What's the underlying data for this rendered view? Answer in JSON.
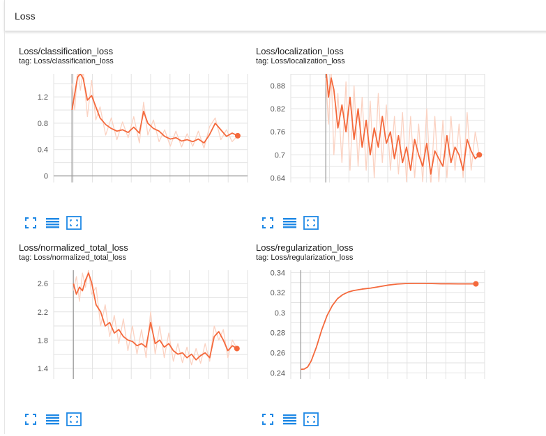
{
  "section": {
    "title": "Loss"
  },
  "colors": {
    "smoothed": "#f4693c",
    "raw": "#fbd2c2",
    "grid": "#e2e2e2",
    "axis": "#9e9e9e",
    "icon": "#1e88e5"
  },
  "icons": [
    "fit-domain-icon",
    "toggle-log-scale-icon",
    "expand-chart-icon"
  ],
  "cards": [
    {
      "title": "Loss/classification_loss",
      "tag_prefix": "tag:",
      "tag": "Loss/classification_loss"
    },
    {
      "title": "Loss/localization_loss",
      "tag_prefix": "tag:",
      "tag": "Loss/localization_loss"
    },
    {
      "title": "Loss/normalized_total_loss",
      "tag_prefix": "tag:",
      "tag": "Loss/normalized_total_loss"
    },
    {
      "title": "Loss/regularization_loss",
      "tag_prefix": "tag:",
      "tag": "Loss/regularization_loss"
    }
  ],
  "chart_data": [
    {
      "type": "line",
      "title": "Loss/classification_loss",
      "xlabel": "",
      "ylabel": "",
      "ylim": [
        -0.1,
        1.55
      ],
      "xlim": [
        -1.3,
        12.5
      ],
      "yticks": [
        0,
        0.4,
        0.8,
        1.2
      ],
      "y_tick_labels": [
        "0",
        "0.4",
        "0.8",
        "1.2"
      ],
      "y_axis_at_x": 0,
      "grid": true,
      "legend": "none",
      "series": [
        {
          "name": "",
          "style": "smoothed",
          "x": [
            0,
            0.2,
            0.4,
            0.6,
            0.8,
            1.1,
            1.4,
            1.7,
            2.0,
            2.4,
            2.8,
            3.2,
            3.6,
            4.0,
            4.4,
            4.8,
            5.1,
            5.4,
            5.8,
            6.2,
            6.6,
            7.0,
            7.4,
            7.8,
            8.2,
            8.6,
            9.0,
            9.4,
            9.8,
            10.2,
            10.6,
            11.0,
            11.4,
            11.8
          ],
          "y": [
            1.0,
            1.25,
            1.5,
            1.55,
            1.48,
            1.15,
            1.22,
            1.05,
            0.88,
            0.78,
            0.72,
            0.68,
            0.7,
            0.66,
            0.74,
            0.65,
            0.98,
            0.8,
            0.72,
            0.68,
            0.6,
            0.56,
            0.58,
            0.53,
            0.55,
            0.52,
            0.56,
            0.5,
            0.63,
            0.8,
            0.7,
            0.6,
            0.65,
            0.61
          ]
        },
        {
          "name": "",
          "style": "raw",
          "x": [
            0,
            0.2,
            0.4,
            0.6,
            0.8,
            1.1,
            1.4,
            1.7,
            2.0,
            2.4,
            2.8,
            3.2,
            3.6,
            4.0,
            4.4,
            4.8,
            5.1,
            5.4,
            5.8,
            6.2,
            6.6,
            7.0,
            7.4,
            7.8,
            8.2,
            8.6,
            9.0,
            9.4,
            9.8,
            10.2,
            10.6,
            11.0,
            11.4,
            11.8
          ],
          "y": [
            1.4,
            1.0,
            1.62,
            1.3,
            1.6,
            0.9,
            1.45,
            0.85,
            1.05,
            0.62,
            0.88,
            0.55,
            0.82,
            0.58,
            0.9,
            0.5,
            1.12,
            0.62,
            0.85,
            0.52,
            0.7,
            0.45,
            0.68,
            0.44,
            0.64,
            0.45,
            0.68,
            0.42,
            0.75,
            0.88,
            0.55,
            0.7,
            0.52,
            0.61
          ]
        }
      ]
    },
    {
      "type": "line",
      "title": "Loss/localization_loss",
      "xlabel": "",
      "ylabel": "",
      "ylim": [
        0.628,
        0.911
      ],
      "xlim": [
        -1.3,
        5.9
      ],
      "yticks": [
        0.64,
        0.7,
        0.76,
        0.82,
        0.88
      ],
      "y_tick_labels": [
        "0.64",
        "0.7",
        "0.76",
        "0.82",
        "0.88"
      ],
      "y_axis_at_x": 0,
      "grid": true,
      "legend": "none",
      "series": [
        {
          "name": "",
          "style": "smoothed",
          "x": [
            0.0,
            0.1,
            0.2,
            0.3,
            0.45,
            0.6,
            0.75,
            0.9,
            1.05,
            1.2,
            1.35,
            1.5,
            1.65,
            1.8,
            1.95,
            2.1,
            2.25,
            2.4,
            2.55,
            2.7,
            2.85,
            3.0,
            3.15,
            3.3,
            3.45,
            3.6,
            3.75,
            3.9,
            4.05,
            4.2,
            4.35,
            4.5,
            4.65,
            4.8,
            4.95,
            5.1,
            5.25,
            5.4,
            5.55,
            5.7
          ],
          "y": [
            0.93,
            0.85,
            0.9,
            0.87,
            0.77,
            0.83,
            0.76,
            0.85,
            0.74,
            0.82,
            0.72,
            0.79,
            0.7,
            0.77,
            0.72,
            0.8,
            0.73,
            0.76,
            0.69,
            0.75,
            0.68,
            0.72,
            0.66,
            0.74,
            0.7,
            0.67,
            0.73,
            0.65,
            0.71,
            0.69,
            0.67,
            0.75,
            0.68,
            0.72,
            0.7,
            0.66,
            0.74,
            0.71,
            0.69,
            0.7
          ]
        },
        {
          "name": "",
          "style": "raw",
          "x": [
            0.0,
            0.1,
            0.2,
            0.3,
            0.45,
            0.6,
            0.75,
            0.9,
            1.05,
            1.2,
            1.35,
            1.5,
            1.65,
            1.8,
            1.95,
            2.1,
            2.25,
            2.4,
            2.55,
            2.7,
            2.85,
            3.0,
            3.15,
            3.3,
            3.45,
            3.6,
            3.75,
            3.9,
            4.05,
            4.2,
            4.35,
            4.5,
            4.65,
            4.8,
            4.95,
            5.1,
            5.25,
            5.4,
            5.55,
            5.7
          ],
          "y": [
            0.9,
            0.78,
            0.92,
            0.7,
            0.86,
            0.68,
            0.89,
            0.66,
            0.88,
            0.67,
            0.85,
            0.66,
            0.84,
            0.64,
            0.86,
            0.68,
            0.83,
            0.66,
            0.8,
            0.65,
            0.81,
            0.63,
            0.8,
            0.64,
            0.78,
            0.63,
            0.82,
            0.62,
            0.8,
            0.63,
            0.79,
            0.64,
            0.8,
            0.66,
            0.78,
            0.64,
            0.81,
            0.66,
            0.76,
            0.7
          ]
        }
      ]
    },
    {
      "type": "line",
      "title": "Loss/normalized_total_loss",
      "xlabel": "",
      "ylabel": "",
      "ylim": [
        1.25,
        2.79
      ],
      "xlim": [
        -1.3,
        11.5
      ],
      "yticks": [
        1.4,
        1.8,
        2.2,
        2.6
      ],
      "y_tick_labels": [
        "1.4",
        "1.8",
        "2.2",
        "2.6"
      ],
      "y_axis_at_x": 0,
      "grid": true,
      "legend": "none",
      "series": [
        {
          "name": "",
          "style": "smoothed",
          "x": [
            0.0,
            0.2,
            0.4,
            0.6,
            0.8,
            1.0,
            1.2,
            1.5,
            1.8,
            2.1,
            2.4,
            2.7,
            3.0,
            3.3,
            3.6,
            3.9,
            4.2,
            4.5,
            4.8,
            5.1,
            5.4,
            5.7,
            6.0,
            6.3,
            6.6,
            6.9,
            7.2,
            7.5,
            7.8,
            8.1,
            8.4,
            8.7,
            9.0,
            9.3,
            9.6,
            9.9,
            10.2,
            10.5,
            10.8
          ],
          "y": [
            2.6,
            2.45,
            2.55,
            2.5,
            2.65,
            2.75,
            2.62,
            2.3,
            2.2,
            2.0,
            2.05,
            1.9,
            1.95,
            1.85,
            1.8,
            1.78,
            1.72,
            1.75,
            1.7,
            2.05,
            1.75,
            1.8,
            1.7,
            1.75,
            1.65,
            1.6,
            1.62,
            1.55,
            1.6,
            1.52,
            1.58,
            1.62,
            1.55,
            1.85,
            1.92,
            1.8,
            1.65,
            1.72,
            1.68
          ]
        },
        {
          "name": "",
          "style": "raw",
          "x": [
            0.0,
            0.2,
            0.4,
            0.6,
            0.8,
            1.0,
            1.2,
            1.5,
            1.8,
            2.1,
            2.4,
            2.7,
            3.0,
            3.3,
            3.6,
            3.9,
            4.2,
            4.5,
            4.8,
            5.1,
            5.4,
            5.7,
            6.0,
            6.3,
            6.6,
            6.9,
            7.2,
            7.5,
            7.8,
            8.1,
            8.4,
            8.7,
            9.0,
            9.3,
            9.6,
            9.9,
            10.2,
            10.5,
            10.8
          ],
          "y": [
            2.5,
            2.7,
            2.35,
            2.75,
            2.55,
            2.8,
            2.45,
            2.55,
            2.0,
            2.3,
            1.85,
            2.15,
            1.75,
            2.1,
            1.65,
            2.0,
            1.6,
            1.95,
            1.55,
            2.2,
            1.6,
            2.0,
            1.55,
            1.9,
            1.5,
            1.75,
            1.48,
            1.7,
            1.45,
            1.68,
            1.47,
            1.75,
            1.5,
            2.0,
            1.8,
            1.95,
            1.55,
            1.8,
            1.68
          ]
        }
      ]
    },
    {
      "type": "line",
      "title": "Loss/regularization_loss",
      "xlabel": "",
      "ylabel": "",
      "ylim": [
        0.234,
        0.3423
      ],
      "xlim": [
        -0.57,
        10.5
      ],
      "yticks": [
        0.24,
        0.26,
        0.28,
        0.3,
        0.32,
        0.34
      ],
      "y_tick_labels": [
        "0.24",
        "0.26",
        "0.28",
        "0.3",
        "0.32",
        "0.34"
      ],
      "y_axis_at_x": 0,
      "grid": true,
      "legend": "none",
      "series": [
        {
          "name": "",
          "style": "smoothed",
          "x": [
            0,
            0.2,
            0.4,
            0.6,
            0.9,
            1.2,
            1.5,
            1.8,
            2.1,
            2.4,
            2.7,
            3.0,
            3.5,
            4.0,
            4.5,
            5.0,
            5.5,
            6.0,
            6.5,
            7.0,
            7.5,
            8.0,
            8.5,
            9.0,
            9.5,
            10.0
          ],
          "y": [
            0.2435,
            0.2438,
            0.246,
            0.252,
            0.266,
            0.283,
            0.297,
            0.307,
            0.314,
            0.318,
            0.3205,
            0.322,
            0.3235,
            0.3245,
            0.326,
            0.3275,
            0.3285,
            0.329,
            0.3292,
            0.3292,
            0.329,
            0.3288,
            0.3288,
            0.3287,
            0.3287,
            0.3287
          ]
        }
      ]
    }
  ]
}
